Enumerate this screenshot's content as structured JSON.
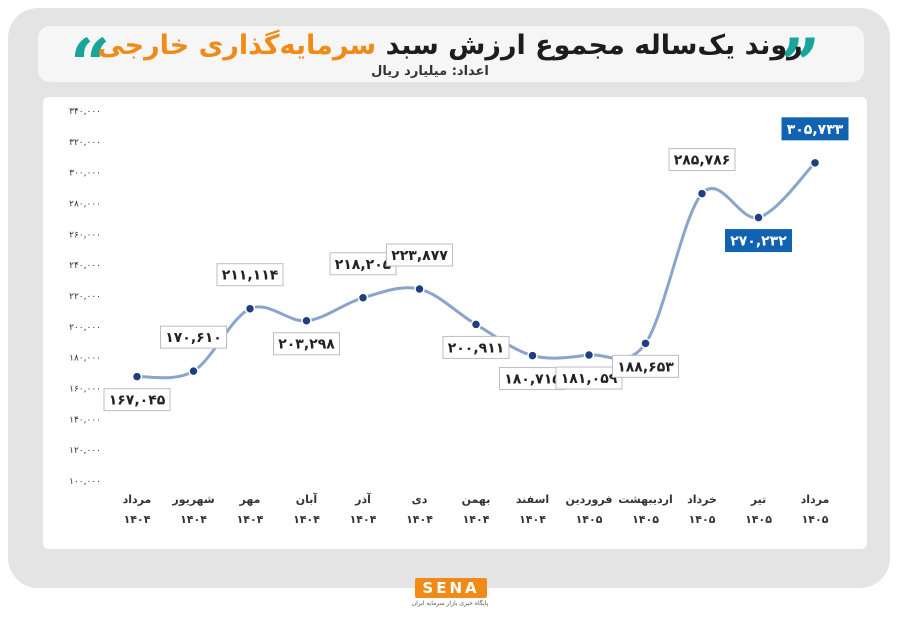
{
  "title": {
    "main": "روند یک‌ساله مجموع ارزش سبد",
    "accent": "سرمایه‌گذاری خارجی"
  },
  "unit_label": "اعداد: میلیارد ریال",
  "logo": {
    "word": "SENA",
    "tagline": "پایگاه خبری بازار سرمایه ایران"
  },
  "colors": {
    "line": "#8ba4cc",
    "marker": "#1f3f80",
    "highlight": "#1162b0",
    "accent": "#f28a17",
    "quote": "#18a69c"
  },
  "chart_data": {
    "type": "line",
    "title": "روند یک‌ساله مجموع ارزش سبد سرمایه‌گذاری خارجی",
    "ylabel": "",
    "xlabel": "",
    "ylim": [
      100000,
      340000
    ],
    "yticks": [
      100000,
      120000,
      140000,
      160000,
      180000,
      200000,
      220000,
      240000,
      260000,
      280000,
      300000,
      320000,
      340000
    ],
    "ytick_labels": [
      "۱۰۰,۰۰۰",
      "۱۲۰,۰۰۰",
      "۱۴۰,۰۰۰",
      "۱۶۰,۰۰۰",
      "۱۸۰,۰۰۰",
      "۲۰۰,۰۰۰",
      "۲۲۰,۰۰۰",
      "۲۴۰,۰۰۰",
      "۲۶۰,۰۰۰",
      "۲۸۰,۰۰۰",
      "۳۰۰,۰۰۰",
      "۳۲۰,۰۰۰",
      "۳۴۰,۰۰۰"
    ],
    "categories": [
      {
        "month": "مرداد",
        "year": "۱۴۰۴"
      },
      {
        "month": "شهریور",
        "year": "۱۴۰۴"
      },
      {
        "month": "مهر",
        "year": "۱۴۰۴"
      },
      {
        "month": "آبان",
        "year": "۱۴۰۴"
      },
      {
        "month": "آذر",
        "year": "۱۴۰۴"
      },
      {
        "month": "دی",
        "year": "۱۴۰۴"
      },
      {
        "month": "بهمن",
        "year": "۱۴۰۴"
      },
      {
        "month": "اسفند",
        "year": "۱۴۰۴"
      },
      {
        "month": "فروردین",
        "year": "۱۴۰۵"
      },
      {
        "month": "اردیبهشت",
        "year": "۱۴۰۵"
      },
      {
        "month": "خرداد",
        "year": "۱۴۰۵"
      },
      {
        "month": "تیر",
        "year": "۱۴۰۵"
      },
      {
        "month": "مرداد",
        "year": "۱۴۰۵"
      }
    ],
    "values": [
      167045,
      170610,
      211114,
      203298,
      218205,
      223877,
      200911,
      180715,
      181059,
      188653,
      285786,
      270232,
      305733
    ],
    "value_labels": [
      "۱۶۷,۰۴۵",
      "۱۷۰,۶۱۰",
      "۲۱۱,۱۱۴",
      "۲۰۳,۲۹۸",
      "۲۱۸,۲۰۵",
      "۲۲۳,۸۷۷",
      "۲۰۰,۹۱۱",
      "۱۸۰,۷۱۵",
      "۱۸۱,۰۵۹",
      "۱۸۸,۶۵۳",
      "۲۸۵,۷۸۶",
      "۲۷۰,۲۳۲",
      "۳۰۵,۷۳۳"
    ],
    "highlighted": [
      11,
      12
    ],
    "grid": false,
    "legend": "none"
  }
}
